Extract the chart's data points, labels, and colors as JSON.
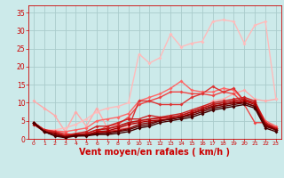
{
  "background_color": "#cceaea",
  "grid_color": "#aacccc",
  "xlabel": "Vent moyen/en rafales ( km/h )",
  "xlabel_color": "#cc0000",
  "xlabel_fontsize": 7,
  "tick_color": "#cc0000",
  "xlim": [
    -0.5,
    23.5
  ],
  "ylim": [
    0,
    37
  ],
  "xticks": [
    0,
    1,
    2,
    3,
    4,
    5,
    6,
    7,
    8,
    9,
    10,
    11,
    12,
    13,
    14,
    15,
    16,
    17,
    18,
    19,
    20,
    21,
    22,
    23
  ],
  "yticks": [
    0,
    5,
    10,
    15,
    20,
    25,
    30,
    35
  ],
  "series": [
    {
      "x": [
        0,
        1,
        2,
        3,
        4,
        5,
        6,
        7,
        8,
        9,
        10,
        11,
        12,
        13,
        14,
        15,
        16,
        17,
        18,
        19,
        20,
        21,
        22,
        23
      ],
      "y": [
        10.5,
        8.5,
        6.5,
        2.0,
        7.5,
        3.5,
        8.5,
        3.0,
        3.0,
        3.5,
        4.5,
        5.5,
        5.5,
        5.5,
        6.5,
        7.5,
        8.5,
        10.5,
        11.0,
        12.5,
        13.5,
        11.0,
        10.5,
        11.0
      ],
      "color": "#ffaaaa",
      "linewidth": 1.0,
      "marker": "D",
      "markersize": 2.0
    },
    {
      "x": [
        0,
        1,
        2,
        3,
        4,
        5,
        6,
        7,
        8,
        9,
        10,
        11,
        12,
        13,
        14,
        15,
        16,
        17,
        18,
        19,
        20,
        21,
        22,
        23
      ],
      "y": [
        4.5,
        2.5,
        2.5,
        3.0,
        4.0,
        5.5,
        7.5,
        8.5,
        9.0,
        10.0,
        23.5,
        21.0,
        22.5,
        29.0,
        25.5,
        26.5,
        27.0,
        32.5,
        33.0,
        32.5,
        26.5,
        31.5,
        32.5,
        11.0
      ],
      "color": "#ffbbbb",
      "linewidth": 1.0,
      "marker": "D",
      "markersize": 2.0
    },
    {
      "x": [
        0,
        1,
        2,
        3,
        4,
        5,
        6,
        7,
        8,
        9,
        10,
        11,
        12,
        13,
        14,
        15,
        16,
        17,
        18,
        19,
        20,
        21,
        22,
        23
      ],
      "y": [
        4.5,
        2.5,
        2.2,
        2.0,
        2.5,
        3.0,
        5.0,
        5.5,
        6.0,
        7.0,
        10.5,
        11.5,
        12.5,
        14.0,
        16.0,
        13.5,
        13.0,
        13.0,
        14.0,
        13.5,
        10.5,
        10.0,
        5.0,
        3.5
      ],
      "color": "#ff6666",
      "linewidth": 1.0,
      "marker": "D",
      "markersize": 2.0
    },
    {
      "x": [
        0,
        1,
        2,
        3,
        4,
        5,
        6,
        7,
        8,
        9,
        10,
        11,
        12,
        13,
        14,
        15,
        16,
        17,
        18,
        19,
        20,
        21,
        22,
        23
      ],
      "y": [
        4.5,
        2.5,
        2.0,
        1.5,
        1.0,
        1.0,
        2.0,
        3.5,
        4.0,
        6.0,
        9.5,
        10.5,
        11.5,
        13.0,
        13.0,
        12.5,
        12.5,
        12.0,
        13.0,
        12.5,
        9.5,
        4.5,
        4.5,
        3.0
      ],
      "color": "#ee4444",
      "linewidth": 1.0,
      "marker": "D",
      "markersize": 2.0
    },
    {
      "x": [
        0,
        1,
        2,
        3,
        4,
        5,
        6,
        7,
        8,
        9,
        10,
        11,
        12,
        13,
        14,
        15,
        16,
        17,
        18,
        19,
        20,
        21,
        22,
        23
      ],
      "y": [
        4.5,
        2.5,
        1.8,
        0.6,
        1.0,
        1.2,
        1.8,
        2.0,
        2.5,
        3.0,
        10.5,
        10.5,
        9.5,
        9.5,
        9.5,
        11.5,
        12.5,
        14.5,
        13.0,
        14.0,
        10.5,
        10.0,
        4.5,
        3.0
      ],
      "color": "#dd3333",
      "linewidth": 1.0,
      "marker": "D",
      "markersize": 2.0
    },
    {
      "x": [
        0,
        1,
        2,
        3,
        4,
        5,
        6,
        7,
        8,
        9,
        10,
        11,
        12,
        13,
        14,
        15,
        16,
        17,
        18,
        19,
        20,
        21,
        22,
        23
      ],
      "y": [
        4.5,
        2.5,
        2.0,
        1.0,
        1.5,
        2.0,
        3.5,
        3.5,
        4.5,
        5.5,
        5.5,
        6.5,
        6.0,
        6.5,
        7.0,
        8.0,
        9.0,
        10.0,
        10.5,
        11.0,
        11.5,
        10.5,
        4.5,
        3.0
      ],
      "color": "#cc2222",
      "linewidth": 1.0,
      "marker": "D",
      "markersize": 2.0
    },
    {
      "x": [
        0,
        1,
        2,
        3,
        4,
        5,
        6,
        7,
        8,
        9,
        10,
        11,
        12,
        13,
        14,
        15,
        16,
        17,
        18,
        19,
        20,
        21,
        22,
        23
      ],
      "y": [
        4.5,
        2.2,
        1.5,
        0.8,
        1.2,
        1.5,
        2.5,
        2.8,
        3.5,
        4.5,
        5.0,
        5.5,
        5.8,
        6.0,
        6.5,
        7.5,
        8.5,
        9.5,
        10.0,
        10.5,
        11.0,
        10.0,
        4.0,
        2.8
      ],
      "color": "#bb1111",
      "linewidth": 1.2,
      "marker": "D",
      "markersize": 2.0
    },
    {
      "x": [
        0,
        1,
        2,
        3,
        4,
        5,
        6,
        7,
        8,
        9,
        10,
        11,
        12,
        13,
        14,
        15,
        16,
        17,
        18,
        19,
        20,
        21,
        22,
        23
      ],
      "y": [
        4.0,
        2.0,
        1.0,
        0.5,
        0.8,
        1.0,
        2.0,
        2.2,
        3.0,
        4.0,
        4.5,
        5.0,
        5.2,
        5.5,
        6.0,
        7.0,
        8.0,
        9.0,
        9.5,
        10.0,
        10.5,
        9.5,
        3.5,
        2.5
      ],
      "color": "#aa0000",
      "linewidth": 1.0,
      "marker": "D",
      "markersize": 2.0
    },
    {
      "x": [
        0,
        1,
        2,
        3,
        4,
        5,
        6,
        7,
        8,
        9,
        10,
        11,
        12,
        13,
        14,
        15,
        16,
        17,
        18,
        19,
        20,
        21,
        22,
        23
      ],
      "y": [
        4.5,
        2.0,
        1.5,
        0.5,
        1.0,
        1.0,
        1.5,
        1.8,
        2.2,
        2.8,
        4.0,
        4.5,
        5.0,
        5.5,
        6.0,
        7.0,
        8.0,
        9.0,
        9.5,
        10.0,
        10.0,
        9.0,
        4.0,
        2.5
      ],
      "color": "#880000",
      "linewidth": 1.0,
      "marker": "D",
      "markersize": 2.0
    },
    {
      "x": [
        0,
        1,
        2,
        3,
        4,
        5,
        6,
        7,
        8,
        9,
        10,
        11,
        12,
        13,
        14,
        15,
        16,
        17,
        18,
        19,
        20,
        21,
        22,
        23
      ],
      "y": [
        4.5,
        2.0,
        1.0,
        0.5,
        1.0,
        1.0,
        1.5,
        1.5,
        2.0,
        2.5,
        3.5,
        4.0,
        5.0,
        5.5,
        6.0,
        6.5,
        7.5,
        8.5,
        9.0,
        9.5,
        10.0,
        9.0,
        3.5,
        2.5
      ],
      "color": "#660000",
      "linewidth": 1.0,
      "marker": "D",
      "markersize": 2.0
    },
    {
      "x": [
        0,
        1,
        2,
        3,
        4,
        5,
        6,
        7,
        8,
        9,
        10,
        11,
        12,
        13,
        14,
        15,
        16,
        17,
        18,
        19,
        20,
        21,
        22,
        23
      ],
      "y": [
        4.5,
        2.0,
        0.8,
        0.3,
        0.8,
        0.8,
        1.2,
        1.2,
        1.5,
        2.0,
        3.0,
        3.5,
        4.5,
        5.0,
        5.5,
        6.0,
        7.0,
        8.0,
        8.5,
        9.0,
        9.5,
        8.5,
        3.0,
        2.0
      ],
      "color": "#440000",
      "linewidth": 1.0,
      "marker": "D",
      "markersize": 2.0
    }
  ]
}
